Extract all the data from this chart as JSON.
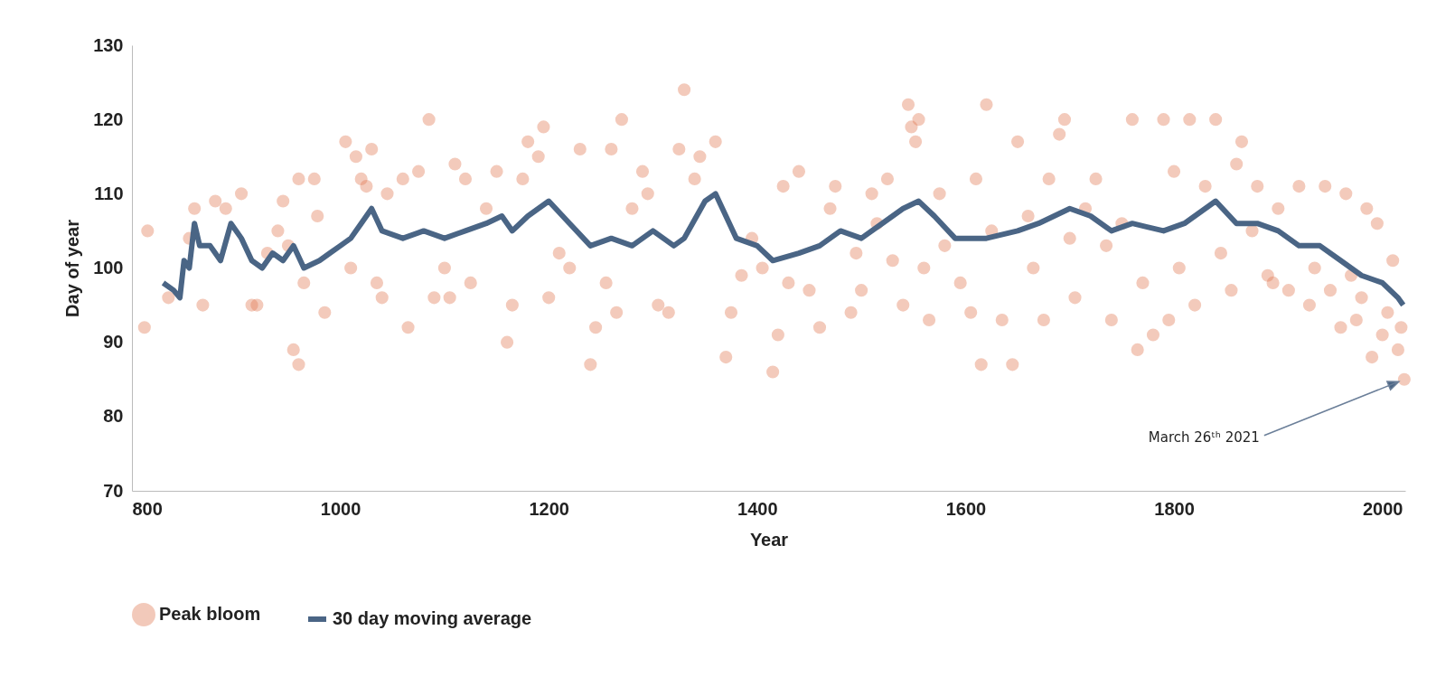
{
  "chart_data": {
    "type": "scatter",
    "xlabel": "Year",
    "ylabel": "Day of year",
    "xlim": [
      800,
      2022
    ],
    "ylim": [
      70,
      130
    ],
    "xticks": [
      800,
      {
        "value": 1000,
        "label": "1000"
      },
      {
        "value": 1200,
        "label": "1200"
      },
      {
        "value": 1400,
        "label": "1400"
      },
      {
        "value": 1600,
        "label": "1600"
      },
      {
        "value": 1800,
        "label": "1800"
      },
      {
        "value": 2000,
        "label": "2000"
      }
    ],
    "yticks": [
      70,
      80,
      90,
      100,
      110,
      120,
      130
    ],
    "grid": false,
    "legend": "bottom",
    "series": [
      {
        "name": "Peak bloom",
        "marker": "circle",
        "color": "#e07b54",
        "x": [
          812,
          815,
          835,
          855,
          860,
          868,
          880,
          890,
          905,
          915,
          920,
          930,
          940,
          945,
          950,
          955,
          960,
          960,
          965,
          975,
          978,
          985,
          1005,
          1010,
          1015,
          1020,
          1025,
          1030,
          1035,
          1040,
          1045,
          1060,
          1065,
          1075,
          1085,
          1090,
          1100,
          1105,
          1110,
          1120,
          1125,
          1140,
          1150,
          1160,
          1165,
          1175,
          1180,
          1190,
          1195,
          1200,
          1210,
          1220,
          1230,
          1240,
          1245,
          1255,
          1260,
          1265,
          1270,
          1280,
          1290,
          1295,
          1305,
          1315,
          1325,
          1330,
          1340,
          1345,
          1360,
          1370,
          1375,
          1385,
          1395,
          1405,
          1415,
          1420,
          1425,
          1430,
          1440,
          1450,
          1460,
          1470,
          1475,
          1490,
          1495,
          1500,
          1510,
          1515,
          1525,
          1530,
          1540,
          1545,
          1548,
          1552,
          1555,
          1560,
          1565,
          1575,
          1580,
          1595,
          1605,
          1610,
          1615,
          1620,
          1625,
          1635,
          1645,
          1650,
          1660,
          1665,
          1675,
          1680,
          1690,
          1695,
          1700,
          1705,
          1715,
          1725,
          1735,
          1740,
          1750,
          1760,
          1765,
          1770,
          1780,
          1790,
          1795,
          1800,
          1805,
          1815,
          1820,
          1830,
          1840,
          1845,
          1855,
          1860,
          1865,
          1875,
          1880,
          1890,
          1895,
          1900,
          1910,
          1920,
          1930,
          1935,
          1945,
          1950,
          1960,
          1965,
          1970,
          1975,
          1980,
          1985,
          1990,
          1995,
          2000,
          2005,
          2010,
          2015,
          2018,
          2021
        ],
        "values": [
          92,
          105,
          96,
          104,
          108,
          95,
          109,
          108,
          110,
          95,
          95,
          102,
          105,
          109,
          103,
          89,
          87,
          112,
          98,
          112,
          107,
          94,
          117,
          100,
          115,
          112,
          111,
          116,
          98,
          96,
          110,
          112,
          92,
          113,
          120,
          96,
          100,
          96,
          114,
          112,
          98,
          108,
          113,
          90,
          95,
          112,
          117,
          115,
          119,
          96,
          102,
          100,
          116,
          87,
          92,
          98,
          116,
          94,
          120,
          108,
          113,
          110,
          95,
          94,
          116,
          124,
          112,
          115,
          117,
          88,
          94,
          99,
          104,
          100,
          86,
          91,
          111,
          98,
          113,
          97,
          92,
          108,
          111,
          94,
          102,
          97,
          110,
          106,
          112,
          101,
          95,
          122,
          119,
          117,
          120,
          100,
          93,
          110,
          103,
          98,
          94,
          112,
          87,
          122,
          105,
          93,
          87,
          117,
          107,
          100,
          93,
          112,
          118,
          120,
          104,
          96,
          108,
          112,
          103,
          93,
          106,
          120,
          89,
          98,
          91,
          120,
          93,
          113,
          100,
          120,
          95,
          111,
          120,
          102,
          97,
          114,
          117,
          105,
          111,
          99,
          98,
          108,
          97,
          111,
          95,
          100,
          111,
          97,
          92,
          110,
          99,
          93,
          96,
          108,
          88,
          106,
          91,
          94,
          101,
          89,
          92,
          85
        ]
      },
      {
        "name": "30 day moving average",
        "type": "line",
        "marker": "none",
        "color": "#4a6585",
        "line_style": "solid",
        "x": [
          830,
          840,
          846,
          850,
          855,
          860,
          865,
          875,
          885,
          895,
          905,
          915,
          925,
          935,
          945,
          955,
          965,
          980,
          990,
          1000,
          1010,
          1020,
          1030,
          1040,
          1060,
          1080,
          1100,
          1120,
          1140,
          1155,
          1165,
          1180,
          1200,
          1220,
          1240,
          1260,
          1280,
          1300,
          1320,
          1330,
          1350,
          1360,
          1380,
          1400,
          1415,
          1440,
          1460,
          1480,
          1500,
          1520,
          1540,
          1555,
          1570,
          1590,
          1620,
          1650,
          1670,
          1700,
          1720,
          1740,
          1760,
          1790,
          1810,
          1830,
          1840,
          1860,
          1880,
          1900,
          1920,
          1940,
          1960,
          1980,
          2000,
          2015,
          2020
        ],
        "values": [
          98,
          97,
          96,
          101,
          100,
          106,
          103,
          103,
          101,
          106,
          104,
          101,
          100,
          102,
          101,
          103,
          100,
          101,
          102,
          103,
          104,
          106,
          108,
          105,
          104,
          105,
          104,
          105,
          106,
          107,
          105,
          107,
          109,
          106,
          103,
          104,
          103,
          105,
          103,
          104,
          109,
          110,
          104,
          103,
          101,
          102,
          103,
          105,
          104,
          106,
          108,
          109,
          107,
          104,
          104,
          105,
          106,
          108,
          107,
          105,
          106,
          105,
          106,
          108,
          109,
          106,
          106,
          105,
          103,
          103,
          101,
          99,
          98,
          96,
          95
        ]
      }
    ],
    "annotations": [
      {
        "text": "March 26ᵗʰ 2021",
        "x": 2021,
        "y": 85
      }
    ]
  }
}
